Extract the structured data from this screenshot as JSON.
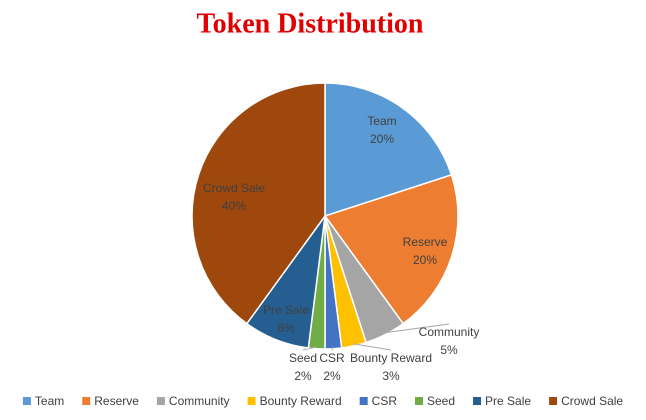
{
  "chart_data": {
    "type": "pie",
    "title": "Token Distribution",
    "categories": [
      "Team",
      "Reserve",
      "Community",
      "Bounty Reward",
      "CSR",
      "Seed",
      "Pre Sale",
      "Crowd Sale"
    ],
    "values": [
      20,
      20,
      5,
      3,
      2,
      2,
      8,
      40
    ],
    "value_labels": [
      "20%",
      "20%",
      "5%",
      "3%",
      "2%",
      "2%",
      "8%",
      "40%"
    ],
    "colors": [
      "#5b9bd5",
      "#ed7d31",
      "#a5a5a5",
      "#ffc000",
      "#4472c4",
      "#70ad47",
      "#255e91",
      "#9e480e"
    ],
    "legend": "bottom"
  }
}
